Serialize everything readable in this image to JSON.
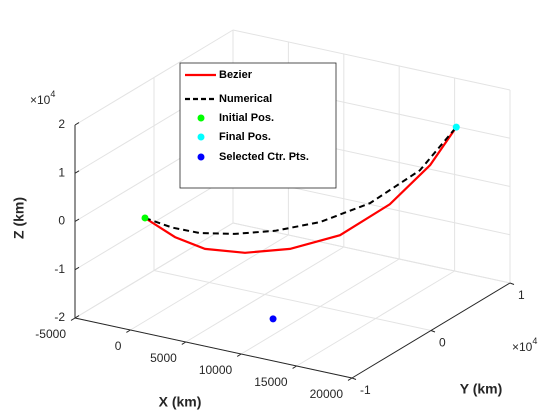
{
  "chart_data": {
    "type": "line3d",
    "xlabel": "X (km)",
    "ylabel": "Y (km)",
    "zlabel": "Z (km)",
    "xlim": [
      -5000,
      20000
    ],
    "ylim": [
      -1,
      1
    ],
    "zlim": [
      -2,
      2
    ],
    "xticks": [
      -5000,
      0,
      5000,
      10000,
      15000,
      20000
    ],
    "yticks": [
      -1,
      0,
      1
    ],
    "zticks": [
      -2,
      -1,
      0,
      1,
      2
    ],
    "yscale_label": {
      "base": "×10",
      "exponent": "4"
    },
    "zscale_label": {
      "base": "×10",
      "exponent": "4"
    },
    "grid": true,
    "legend": "top-center",
    "series": [
      {
        "name": "Bezier",
        "color": "#ff0000",
        "style": "solid",
        "x": [
          0,
          2500,
          5000,
          7500,
          10000,
          12500,
          15000,
          17500,
          20000
        ],
        "y": [
          -0.815,
          -0.786,
          -0.757,
          -0.601,
          -0.382,
          -0.1,
          0.18,
          0.34,
          0.32
        ],
        "z": [
          0.14,
          -0.16,
          -0.31,
          -0.42,
          -0.43,
          -0.3,
          0.19,
          0.97,
          1.9
        ]
      },
      {
        "name": "Numerical",
        "color": "#000000",
        "style": "dashed",
        "x": [
          0,
          2500,
          5000,
          7500,
          10000,
          12500,
          15000,
          17500,
          20000
        ],
        "y": [
          -0.815,
          -0.82,
          -0.82,
          -0.73,
          -0.57,
          -0.35,
          -0.07,
          0.21,
          0.32
        ],
        "z": [
          0.14,
          0.07,
          0.08,
          0.1,
          0.13,
          0.22,
          0.46,
          0.99,
          1.9
        ]
      },
      {
        "name": "Initial Pos.",
        "color": "#00ff00",
        "style": "marker",
        "x": [
          0
        ],
        "y": [
          -0.815
        ],
        "z": [
          0.14
        ]
      },
      {
        "name": "Final Pos.",
        "color": "#00ffff",
        "style": "marker",
        "x": [
          20000
        ],
        "y": [
          0.32
        ],
        "z": [
          1.9
        ]
      },
      {
        "name": "Selected Ctr. Pts.",
        "color": "#0000ff",
        "style": "marker",
        "x": [
          8241
        ],
        "y": [
          -0.35
        ],
        "z": [
          -2
        ]
      }
    ]
  }
}
